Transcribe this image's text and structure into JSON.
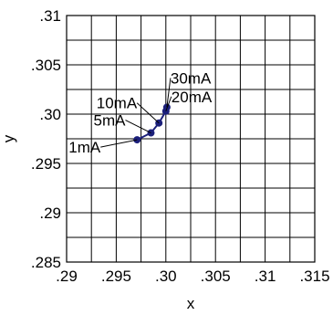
{
  "chart_data": {
    "type": "line",
    "title": "",
    "xlabel": "x",
    "ylabel": "y",
    "xlim": [
      0.29,
      0.315
    ],
    "ylim": [
      0.285,
      0.31
    ],
    "xticks": [
      ".29",
      ".295",
      ".30",
      ".305",
      ".31",
      ".315"
    ],
    "yticks": [
      ".285",
      ".29",
      ".295",
      ".30",
      ".305",
      ".31"
    ],
    "grid": true,
    "colors": {
      "series": "#1b1f7a",
      "frame": "#000000"
    },
    "series": [
      {
        "points": [
          {
            "x": 0.2971,
            "y": 0.2974,
            "label": "1mA"
          },
          {
            "x": 0.2985,
            "y": 0.2981,
            "label": "5mA"
          },
          {
            "x": 0.2993,
            "y": 0.2991,
            "label": "10mA"
          },
          {
            "x": 0.3,
            "y": 0.3003,
            "label": "20mA"
          },
          {
            "x": 0.3001,
            "y": 0.3007,
            "label": "30mA"
          }
        ]
      }
    ]
  }
}
